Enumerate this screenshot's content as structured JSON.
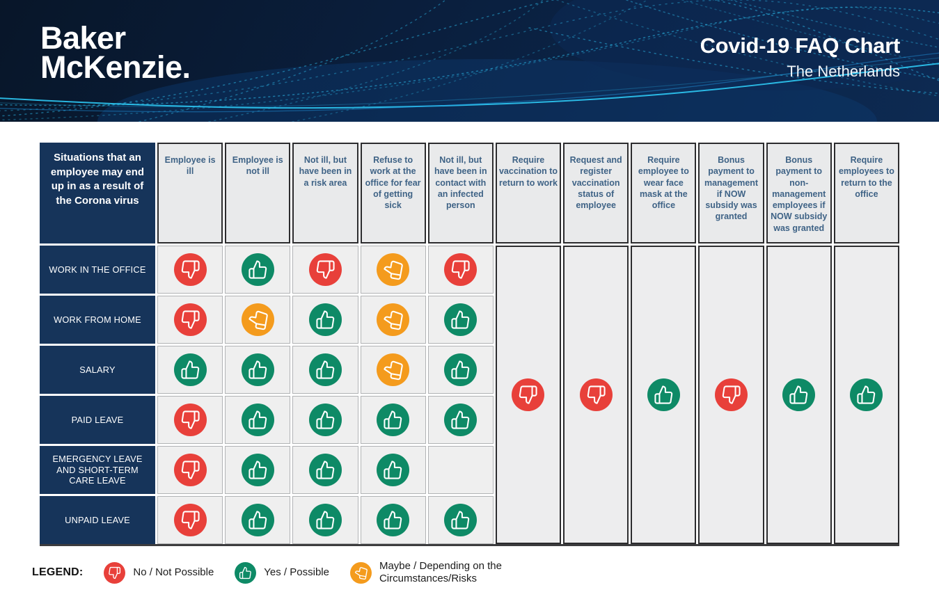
{
  "banner": {
    "logo_line1": "Baker",
    "logo_line2": "McKenzie.",
    "title": "Covid-19 FAQ Chart",
    "subtitle": "The Netherlands"
  },
  "chart_data": {
    "type": "table",
    "title": "Covid-19 FAQ Chart",
    "region": "The Netherlands",
    "corner_header": "Situations that an employee may end up in as a result of the Corona virus",
    "column_labels": [
      "Employee is ill",
      "Employee is not ill",
      "Not ill, but have been in a risk area",
      "Refuse to work at the office for fear of getting sick",
      "Not ill, but have been in contact with an infected person",
      "Require vaccination to return to work",
      "Request and register vaccination status of employee",
      "Require employee to wear face mask at the office",
      "Bonus payment to management if NOW subsidy was granted",
      "Bonus payment to non-management employees if NOW subsidy was granted",
      "Require employees to return to the office"
    ],
    "row_labels": [
      "WORK IN THE OFFICE",
      "WORK FROM HOME",
      "SALARY",
      "PAID LEAVE",
      "EMERGENCY LEAVE AND SHORT-TERM CARE LEAVE",
      "UNPAID LEAVE"
    ],
    "cells": [
      [
        "no",
        "yes",
        "no",
        "maybe",
        "no"
      ],
      [
        "no",
        "maybe",
        "yes",
        "maybe",
        "yes"
      ],
      [
        "yes",
        "yes",
        "yes",
        "maybe",
        "yes"
      ],
      [
        "no",
        "yes",
        "yes",
        "yes",
        "yes"
      ],
      [
        "no",
        "yes",
        "yes",
        "yes",
        null
      ],
      [
        "no",
        "yes",
        "yes",
        "yes",
        "yes"
      ]
    ],
    "full_height_column_values": [
      "no",
      "no",
      "yes",
      "no",
      "yes",
      "yes"
    ],
    "value_legend": {
      "no": "No / Not Possible",
      "yes": "Yes / Possible",
      "maybe": "Maybe / Depending on the Circumstances/Risks"
    }
  },
  "legend": {
    "title": "LEGEND:",
    "items": [
      {
        "value": "no",
        "icon": "thumbs-down-icon",
        "label": "No / Not Possible"
      },
      {
        "value": "yes",
        "icon": "thumbs-up-icon",
        "label": "Yes / Possible"
      },
      {
        "value": "maybe",
        "icon": "maybe-hand-icon",
        "label": "Maybe / Depending on the Circumstances/Risks"
      }
    ]
  },
  "colors": {
    "no": "#E8403A",
    "yes": "#0E8A66",
    "maybe": "#F49B1D",
    "navy": "#16345A",
    "header_text": "#3F6386",
    "cell_bg": "#EFEFEF",
    "banner_wave": "#2CB9E9"
  }
}
